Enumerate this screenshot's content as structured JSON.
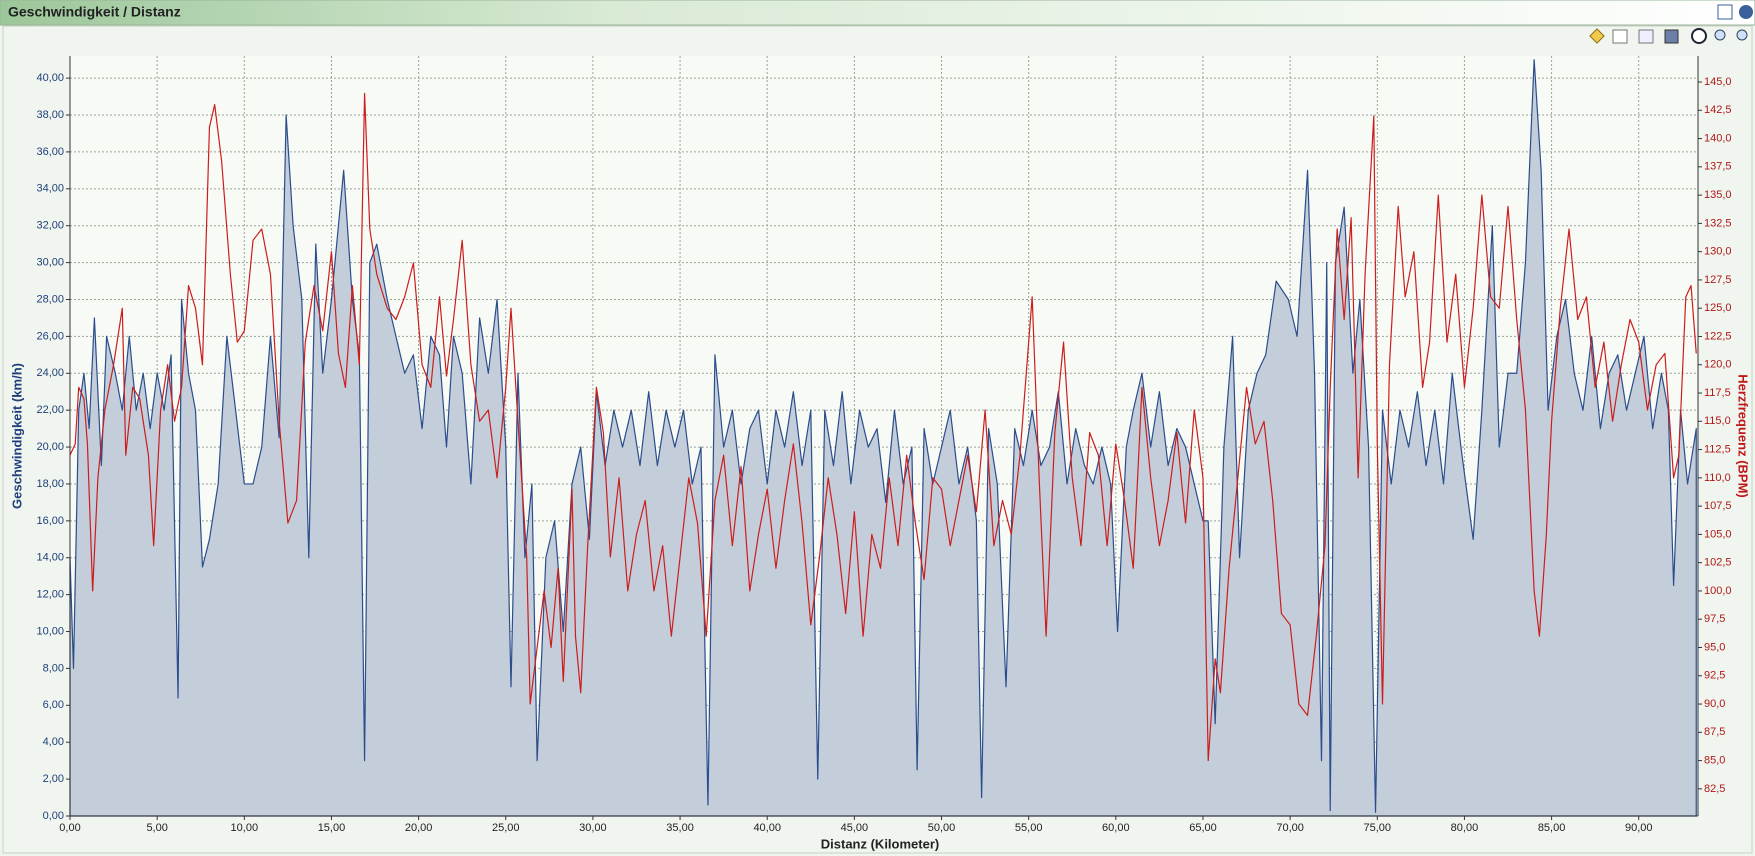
{
  "chart_data": {
    "type": "area-line",
    "title": "Geschwindigkeit / Distanz",
    "x_label": "Distanz (Kilometer)",
    "y_label": "Geschwindigkeit (km/h)",
    "y2_label": "Herzfrequenz (BPM)",
    "grid": true,
    "xlim": [
      0,
      93.4
    ],
    "ylim": [
      0,
      41.2
    ],
    "y2lim": [
      80.1,
      147.3
    ],
    "xticks": [
      {
        "value": 0,
        "label": "0,00"
      },
      {
        "value": 5,
        "label": "5,00"
      },
      {
        "value": 10,
        "label": "10,00"
      },
      {
        "value": 15,
        "label": "15,00"
      },
      {
        "value": 20,
        "label": "20,00"
      },
      {
        "value": 25,
        "label": "25,00"
      },
      {
        "value": 30,
        "label": "30,00"
      },
      {
        "value": 35,
        "label": "35,00"
      },
      {
        "value": 40,
        "label": "40,00"
      },
      {
        "value": 45,
        "label": "45,00"
      },
      {
        "value": 50,
        "label": "50,00"
      },
      {
        "value": 55,
        "label": "55,00"
      },
      {
        "value": 60,
        "label": "60,00"
      },
      {
        "value": 65,
        "label": "65,00"
      },
      {
        "value": 70,
        "label": "70,00"
      },
      {
        "value": 75,
        "label": "75,00"
      },
      {
        "value": 80,
        "label": "80,00"
      },
      {
        "value": 85,
        "label": "85,00"
      },
      {
        "value": 90,
        "label": "90,00"
      }
    ],
    "yticks": [
      {
        "value": 0,
        "label": "0,00"
      },
      {
        "value": 2,
        "label": "2,00"
      },
      {
        "value": 4,
        "label": "4,00"
      },
      {
        "value": 6,
        "label": "6,00"
      },
      {
        "value": 8,
        "label": "8,00"
      },
      {
        "value": 10,
        "label": "10,00"
      },
      {
        "value": 12,
        "label": "12,00"
      },
      {
        "value": 14,
        "label": "14,00"
      },
      {
        "value": 16,
        "label": "16,00"
      },
      {
        "value": 18,
        "label": "18,00"
      },
      {
        "value": 20,
        "label": "20,00"
      },
      {
        "value": 22,
        "label": "22,00"
      },
      {
        "value": 24,
        "label": "24,00"
      },
      {
        "value": 26,
        "label": "26,00"
      },
      {
        "value": 28,
        "label": "28,00"
      },
      {
        "value": 30,
        "label": "30,00"
      },
      {
        "value": 32,
        "label": "32,00"
      },
      {
        "value": 34,
        "label": "34,00"
      },
      {
        "value": 36,
        "label": "36,00"
      },
      {
        "value": 38,
        "label": "38,00"
      },
      {
        "value": 40,
        "label": "40,00"
      }
    ],
    "y2ticks": [
      {
        "value": 82.5,
        "label": "82,5"
      },
      {
        "value": 85,
        "label": "85,0"
      },
      {
        "value": 87.5,
        "label": "87,5"
      },
      {
        "value": 90,
        "label": "90,0"
      },
      {
        "value": 92.5,
        "label": "92,5"
      },
      {
        "value": 95,
        "label": "95,0"
      },
      {
        "value": 97.5,
        "label": "97,5"
      },
      {
        "value": 100,
        "label": "100,0"
      },
      {
        "value": 102.5,
        "label": "102,5"
      },
      {
        "value": 105,
        "label": "105,0"
      },
      {
        "value": 107.5,
        "label": "107,5"
      },
      {
        "value": 110,
        "label": "110,0"
      },
      {
        "value": 112.5,
        "label": "112,5"
      },
      {
        "value": 115,
        "label": "115,0"
      },
      {
        "value": 117.5,
        "label": "117,5"
      },
      {
        "value": 120,
        "label": "120,0"
      },
      {
        "value": 122.5,
        "label": "122,5"
      },
      {
        "value": 125,
        "label": "125,0"
      },
      {
        "value": 127.5,
        "label": "127,5"
      },
      {
        "value": 130,
        "label": "130,0"
      },
      {
        "value": 132.5,
        "label": "132,5"
      },
      {
        "value": 135,
        "label": "135,0"
      },
      {
        "value": 137.5,
        "label": "137,5"
      },
      {
        "value": 140,
        "label": "140,0"
      },
      {
        "value": 142.5,
        "label": "142,5"
      },
      {
        "value": 145,
        "label": "145,0"
      }
    ],
    "series": [
      {
        "kind": "area",
        "color": "#2b4d8c",
        "fill": "#c3ceda",
        "x": [
          0,
          0.2,
          0.5,
          0.8,
          1.1,
          1.4,
          1.8,
          2.1,
          2.6,
          3,
          3.4,
          3.8,
          4.2,
          4.6,
          5,
          5.4,
          5.8,
          6.2,
          6.4,
          6.8,
          7.2,
          7.6,
          8,
          8.5,
          9,
          9.5,
          10,
          10.5,
          11,
          11.5,
          12,
          12.4,
          12.8,
          13.3,
          13.7,
          14.1,
          14.5,
          15,
          15.7,
          16.2,
          16.6,
          16.9,
          17.2,
          17.6,
          18.2,
          18.7,
          19.2,
          19.7,
          20.2,
          20.7,
          21.2,
          21.6,
          22,
          22.5,
          23,
          23.5,
          24,
          24.5,
          25,
          25.3,
          25.7,
          26.1,
          26.5,
          26.8,
          27.3,
          27.8,
          28.3,
          28.8,
          29.3,
          29.8,
          30.2,
          30.7,
          31.2,
          31.7,
          32.2,
          32.7,
          33.2,
          33.7,
          34.2,
          34.7,
          35.2,
          35.7,
          36.2,
          36.6,
          37,
          37.5,
          38,
          38.5,
          39,
          39.5,
          40,
          40.5,
          41,
          41.5,
          42,
          42.5,
          42.9,
          43.3,
          43.8,
          44.3,
          44.8,
          45.3,
          45.8,
          46.3,
          46.8,
          47.3,
          47.8,
          48.3,
          48.6,
          49,
          49.5,
          50,
          50.5,
          51,
          51.5,
          52,
          52.3,
          52.7,
          53.2,
          53.7,
          54.2,
          54.7,
          55.2,
          55.7,
          56.2,
          56.7,
          57.2,
          57.7,
          58.2,
          58.7,
          59.2,
          59.7,
          60.1,
          60.6,
          61,
          61.5,
          62,
          62.5,
          63,
          63.5,
          64,
          64.5,
          65,
          65.3,
          65.7,
          66.2,
          66.7,
          67.1,
          67.6,
          68.1,
          68.6,
          69.2,
          69.9,
          70.4,
          71,
          71.4,
          71.8,
          72.1,
          72.3,
          72.6,
          73.1,
          73.6,
          74,
          74.5,
          74.9,
          75.3,
          75.8,
          76.3,
          76.8,
          77.3,
          77.8,
          78.3,
          78.8,
          79.3,
          79.8,
          80.5,
          81,
          81.6,
          82,
          82.5,
          83,
          83.5,
          84,
          84.4,
          84.8,
          85.3,
          85.8,
          86.3,
          86.8,
          87.3,
          87.8,
          88.3,
          88.8,
          89.3,
          89.8,
          90.3,
          90.8,
          91.3,
          91.7,
          92,
          92.4,
          92.8,
          93.3
        ],
        "values": [
          14,
          8,
          22,
          24,
          21,
          27,
          19,
          26,
          24,
          22,
          26,
          22,
          24,
          21,
          24,
          22,
          25,
          6.4,
          28,
          24,
          22,
          13.5,
          15,
          18,
          26,
          22,
          18,
          18,
          20,
          26,
          20.5,
          38,
          32,
          28,
          14,
          31,
          24,
          28,
          35,
          28,
          25,
          3,
          30,
          31,
          28,
          26,
          24,
          25,
          21,
          26,
          25,
          20,
          26,
          24,
          18,
          27,
          24,
          28,
          20,
          7,
          24,
          14,
          18,
          3,
          14,
          16,
          10,
          18,
          20,
          15,
          23,
          19,
          22,
          20,
          22,
          19,
          23,
          19,
          22,
          20,
          22,
          18,
          20,
          0.6,
          25,
          20,
          22,
          18,
          21,
          22,
          18,
          22,
          20,
          23,
          19,
          22,
          2,
          22,
          19,
          23,
          18,
          22,
          20,
          21,
          17,
          22,
          18,
          20,
          2.5,
          21,
          18,
          20,
          22,
          18,
          20,
          16,
          1,
          21,
          18,
          7,
          21,
          19,
          22,
          19,
          20,
          23,
          18,
          21,
          19,
          18,
          20,
          18,
          10,
          20,
          22,
          24,
          20,
          23,
          19,
          21,
          20,
          18,
          16,
          16,
          5,
          20,
          26,
          14,
          22,
          24,
          25,
          29,
          28,
          26,
          35,
          24,
          3,
          30,
          0.3,
          30,
          33,
          24,
          28,
          20,
          0.2,
          22,
          18,
          22,
          20,
          23,
          19,
          22,
          18,
          24,
          20,
          15,
          22,
          32,
          20,
          24,
          24,
          30,
          41,
          35,
          22,
          26,
          28,
          24,
          22,
          26,
          21,
          24,
          25,
          22,
          24,
          26,
          21,
          24,
          22,
          12.5,
          22,
          18,
          21
        ]
      },
      {
        "kind": "line",
        "axis": "y2",
        "color": "#cc1d1d",
        "x": [
          0,
          0.3,
          0.5,
          0.8,
          1,
          1.3,
          1.6,
          2,
          2.5,
          3,
          3.2,
          3.6,
          4,
          4.5,
          4.8,
          5.2,
          5.6,
          6,
          6.4,
          6.8,
          7.2,
          7.6,
          8,
          8.3,
          8.7,
          9.2,
          9.6,
          10,
          10.5,
          11,
          11.5,
          12,
          12.5,
          13,
          13.5,
          14,
          14.5,
          15,
          15.4,
          15.8,
          16.2,
          16.6,
          16.9,
          17.2,
          17.6,
          18.2,
          18.7,
          19.2,
          19.7,
          20.2,
          20.7,
          21.2,
          21.6,
          22,
          22.5,
          23,
          23.5,
          24,
          24.5,
          25,
          25.3,
          25.7,
          26.2,
          26.4,
          26.8,
          27.2,
          27.6,
          28,
          28.3,
          28.8,
          29,
          29.3,
          29.7,
          30.2,
          30.6,
          31,
          31.5,
          32,
          32.5,
          33,
          33.5,
          34,
          34.5,
          35,
          35.5,
          36,
          36.5,
          37,
          37.5,
          38,
          38.5,
          39,
          39.5,
          40,
          40.5,
          41,
          41.5,
          42,
          42.5,
          43,
          43.5,
          44,
          44.5,
          45,
          45.5,
          46,
          46.5,
          47,
          47.5,
          48,
          48.5,
          49,
          49.5,
          50,
          50.5,
          51,
          51.5,
          52,
          52.5,
          53,
          53.5,
          54,
          54.5,
          55.2,
          55.6,
          56,
          56.5,
          57,
          57.5,
          58,
          58.5,
          59,
          59.5,
          60,
          60.5,
          61,
          61.5,
          62,
          62.5,
          63,
          63.5,
          64,
          64.5,
          65,
          65.3,
          65.7,
          66,
          66.5,
          67,
          67.5,
          68,
          68.5,
          69,
          69.5,
          70,
          70.5,
          71,
          71.5,
          72,
          72.3,
          72.7,
          73.1,
          73.5,
          73.9,
          74.3,
          74.8,
          75,
          75.3,
          75.7,
          76.2,
          76.6,
          77.1,
          77.6,
          78,
          78.5,
          79,
          79.5,
          80,
          80.5,
          81,
          81.5,
          82,
          82.5,
          83,
          83.5,
          84,
          84.3,
          84.7,
          85,
          85.5,
          86,
          86.5,
          87,
          87.5,
          88,
          88.5,
          89,
          89.5,
          90,
          90.5,
          91,
          91.5,
          92,
          92.3,
          92.7,
          93,
          93.3
        ],
        "values": [
          112,
          113,
          118,
          117,
          113,
          100,
          110,
          116,
          120,
          125,
          112,
          118,
          117,
          112,
          104,
          116,
          120,
          115,
          118,
          127,
          125,
          120,
          141,
          143,
          138,
          128,
          122,
          123,
          131,
          132,
          128,
          115,
          106,
          108,
          122,
          127,
          123,
          130,
          121,
          118,
          127,
          120,
          144,
          132,
          128,
          125,
          124,
          126,
          129,
          120,
          118,
          126,
          119,
          124,
          131,
          120,
          115,
          116,
          110,
          118,
          125,
          115,
          103,
          90,
          95,
          100,
          95,
          102,
          92,
          109,
          96,
          91,
          104,
          118,
          114,
          103,
          110,
          100,
          105,
          108,
          100,
          104,
          96,
          103,
          110,
          106,
          96,
          108,
          112,
          104,
          111,
          100,
          105,
          109,
          102,
          108,
          113,
          106,
          97,
          103,
          110,
          105,
          98,
          107,
          96,
          105,
          102,
          110,
          104,
          112,
          106,
          101,
          110,
          109,
          104,
          108,
          112,
          107,
          116,
          104,
          108,
          105,
          112,
          126,
          110,
          96,
          114,
          122,
          110,
          104,
          114,
          112,
          104,
          113,
          108,
          102,
          118,
          110,
          104,
          108,
          114,
          106,
          116,
          110,
          85,
          94,
          91,
          102,
          110,
          118,
          113,
          115,
          108,
          98,
          97,
          90,
          89,
          96,
          104,
          118,
          132,
          124,
          133,
          110,
          128,
          142,
          113,
          90,
          120,
          134,
          126,
          130,
          118,
          122,
          135,
          122,
          128,
          118,
          125,
          135,
          126,
          125,
          134,
          124,
          116,
          100,
          96,
          105,
          115,
          125,
          132,
          124,
          126,
          118,
          122,
          115,
          120,
          124,
          122,
          116,
          120,
          121,
          110,
          112,
          126,
          127,
          121
        ]
      }
    ]
  }
}
